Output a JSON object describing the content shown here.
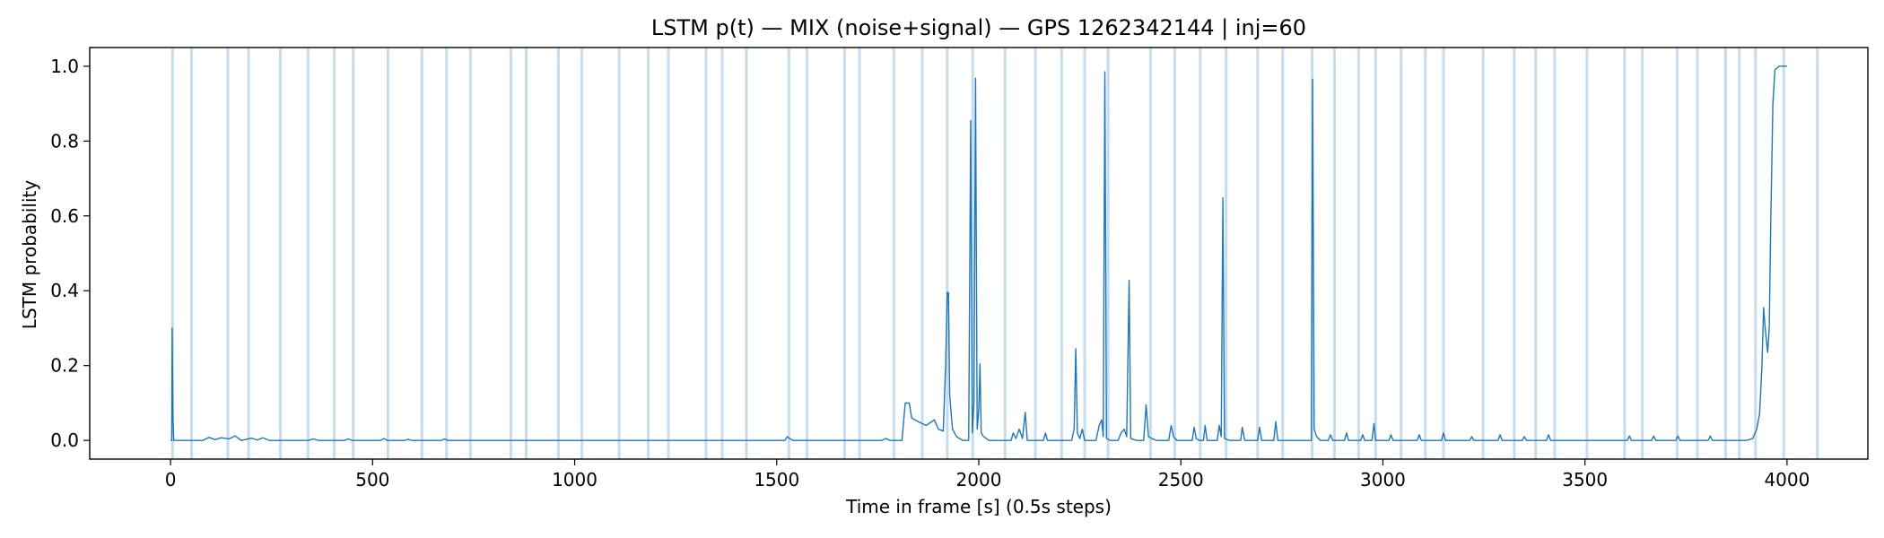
{
  "chart_data": {
    "type": "line",
    "title": "LSTM p(t) — MIX (noise+signal) — GPS 1262342144 | inj=60",
    "xlabel": "Time in frame [s] (0.5s steps)",
    "ylabel": "LSTM probability",
    "xlim": [
      -200,
      4200
    ],
    "ylim": [
      -0.05,
      1.05
    ],
    "xticks": [
      0,
      500,
      1000,
      1500,
      2000,
      2500,
      3000,
      3500,
      4000
    ],
    "xtick_labels": [
      "0",
      "500",
      "1000",
      "1500",
      "2000",
      "2500",
      "3000",
      "3500",
      "4000"
    ],
    "yticks": [
      0.0,
      0.2,
      0.4,
      0.6,
      0.8,
      1.0
    ],
    "ytick_labels": [
      "0.0",
      "0.2",
      "0.4",
      "0.6",
      "0.8",
      "1.0"
    ],
    "grid": false,
    "colors": {
      "line": "#1f77b4",
      "injection_band": "#bcd6ea"
    },
    "injection_markers_x": [
      5,
      52,
      142,
      193,
      272,
      340,
      405,
      452,
      538,
      622,
      683,
      742,
      842,
      880,
      960,
      1018,
      1110,
      1182,
      1232,
      1325,
      1365,
      1425,
      1530,
      1575,
      1668,
      1705,
      1790,
      1860,
      1922,
      1985,
      2065,
      2140,
      2205,
      2262,
      2320,
      2425,
      2485,
      2548,
      2612,
      2690,
      2752,
      2825,
      2880,
      2940,
      2982,
      3045,
      3105,
      3150,
      3248,
      3325,
      3378,
      3425,
      3505,
      3598,
      3642,
      3728,
      3778,
      3848,
      3882,
      3922,
      3992,
      4075
    ],
    "series": [
      {
        "points": [
          [
            0,
            0.0
          ],
          [
            3,
            0.0
          ],
          [
            4,
            0.3
          ],
          [
            6,
            0.06
          ],
          [
            8,
            0.0
          ],
          [
            80,
            0.0
          ],
          [
            95,
            0.008
          ],
          [
            110,
            0.002
          ],
          [
            125,
            0.007
          ],
          [
            145,
            0.004
          ],
          [
            160,
            0.012
          ],
          [
            175,
            0.0
          ],
          [
            200,
            0.006
          ],
          [
            215,
            0.001
          ],
          [
            228,
            0.007
          ],
          [
            245,
            0.0
          ],
          [
            340,
            0.0
          ],
          [
            355,
            0.004
          ],
          [
            365,
            0.0
          ],
          [
            430,
            0.0
          ],
          [
            440,
            0.004
          ],
          [
            450,
            0.0
          ],
          [
            520,
            0.0
          ],
          [
            528,
            0.005
          ],
          [
            536,
            0.0
          ],
          [
            580,
            0.0
          ],
          [
            588,
            0.003
          ],
          [
            596,
            0.0
          ],
          [
            670,
            0.0
          ],
          [
            678,
            0.004
          ],
          [
            686,
            0.0
          ],
          [
            1520,
            0.0
          ],
          [
            1526,
            0.01
          ],
          [
            1532,
            0.005
          ],
          [
            1540,
            0.0
          ],
          [
            1760,
            0.0
          ],
          [
            1770,
            0.005
          ],
          [
            1780,
            0.0
          ],
          [
            1810,
            0.0
          ],
          [
            1818,
            0.1
          ],
          [
            1828,
            0.1
          ],
          [
            1834,
            0.06
          ],
          [
            1850,
            0.05
          ],
          [
            1870,
            0.04
          ],
          [
            1890,
            0.055
          ],
          [
            1900,
            0.03
          ],
          [
            1912,
            0.025
          ],
          [
            1918,
            0.2
          ],
          [
            1922,
            0.395
          ],
          [
            1925,
            0.395
          ],
          [
            1928,
            0.12
          ],
          [
            1935,
            0.03
          ],
          [
            1945,
            0.01
          ],
          [
            1960,
            0.0
          ],
          [
            1975,
            0.0
          ],
          [
            1980,
            0.855
          ],
          [
            1984,
            0.02
          ],
          [
            1988,
            0.1
          ],
          [
            1992,
            0.968
          ],
          [
            1996,
            0.03
          ],
          [
            2000,
            0.08
          ],
          [
            2003,
            0.205
          ],
          [
            2006,
            0.02
          ],
          [
            2012,
            0.01
          ],
          [
            2025,
            0.0
          ],
          [
            2080,
            0.0
          ],
          [
            2085,
            0.02
          ],
          [
            2092,
            0.005
          ],
          [
            2100,
            0.03
          ],
          [
            2108,
            0.005
          ],
          [
            2115,
            0.075
          ],
          [
            2120,
            0.0
          ],
          [
            2160,
            0.0
          ],
          [
            2165,
            0.02
          ],
          [
            2170,
            0.0
          ],
          [
            2230,
            0.0
          ],
          [
            2236,
            0.03
          ],
          [
            2240,
            0.245
          ],
          [
            2244,
            0.02
          ],
          [
            2250,
            0.005
          ],
          [
            2256,
            0.03
          ],
          [
            2262,
            0.0
          ],
          [
            2290,
            0.0
          ],
          [
            2298,
            0.04
          ],
          [
            2304,
            0.055
          ],
          [
            2308,
            0.01
          ],
          [
            2312,
            0.985
          ],
          [
            2316,
            0.005
          ],
          [
            2325,
            0.0
          ],
          [
            2345,
            0.0
          ],
          [
            2352,
            0.02
          ],
          [
            2360,
            0.03
          ],
          [
            2366,
            0.01
          ],
          [
            2372,
            0.428
          ],
          [
            2376,
            0.005
          ],
          [
            2390,
            0.0
          ],
          [
            2408,
            0.0
          ],
          [
            2414,
            0.095
          ],
          [
            2420,
            0.01
          ],
          [
            2428,
            0.005
          ],
          [
            2440,
            0.0
          ],
          [
            2470,
            0.0
          ],
          [
            2476,
            0.04
          ],
          [
            2482,
            0.01
          ],
          [
            2490,
            0.0
          ],
          [
            2528,
            0.0
          ],
          [
            2533,
            0.035
          ],
          [
            2538,
            0.005
          ],
          [
            2545,
            0.0
          ],
          [
            2556,
            0.0
          ],
          [
            2560,
            0.04
          ],
          [
            2565,
            0.0
          ],
          [
            2590,
            0.0
          ],
          [
            2595,
            0.04
          ],
          [
            2600,
            0.01
          ],
          [
            2604,
            0.648
          ],
          [
            2608,
            0.005
          ],
          [
            2620,
            0.0
          ],
          [
            2648,
            0.0
          ],
          [
            2652,
            0.035
          ],
          [
            2658,
            0.0
          ],
          [
            2690,
            0.0
          ],
          [
            2695,
            0.035
          ],
          [
            2700,
            0.0
          ],
          [
            2730,
            0.0
          ],
          [
            2735,
            0.05
          ],
          [
            2740,
            0.0
          ],
          [
            2823,
            0.0
          ],
          [
            2826,
            0.965
          ],
          [
            2830,
            0.03
          ],
          [
            2836,
            0.01
          ],
          [
            2845,
            0.0
          ],
          [
            2865,
            0.0
          ],
          [
            2870,
            0.015
          ],
          [
            2876,
            0.0
          ],
          [
            2905,
            0.0
          ],
          [
            2910,
            0.02
          ],
          [
            2915,
            0.0
          ],
          [
            2945,
            0.0
          ],
          [
            2950,
            0.015
          ],
          [
            2955,
            0.0
          ],
          [
            2973,
            0.0
          ],
          [
            2978,
            0.045
          ],
          [
            2982,
            0.0
          ],
          [
            3015,
            0.0
          ],
          [
            3020,
            0.015
          ],
          [
            3025,
            0.0
          ],
          [
            3085,
            0.0
          ],
          [
            3090,
            0.015
          ],
          [
            3095,
            0.0
          ],
          [
            3145,
            0.0
          ],
          [
            3150,
            0.02
          ],
          [
            3155,
            0.0
          ],
          [
            3215,
            0.0
          ],
          [
            3220,
            0.01
          ],
          [
            3225,
            0.0
          ],
          [
            3285,
            0.0
          ],
          [
            3290,
            0.015
          ],
          [
            3295,
            0.0
          ],
          [
            3345,
            0.0
          ],
          [
            3350,
            0.01
          ],
          [
            3355,
            0.0
          ],
          [
            3405,
            0.0
          ],
          [
            3410,
            0.015
          ],
          [
            3415,
            0.0
          ],
          [
            3605,
            0.0
          ],
          [
            3610,
            0.012
          ],
          [
            3615,
            0.0
          ],
          [
            3665,
            0.0
          ],
          [
            3670,
            0.012
          ],
          [
            3675,
            0.0
          ],
          [
            3725,
            0.0
          ],
          [
            3730,
            0.012
          ],
          [
            3735,
            0.0
          ],
          [
            3805,
            0.0
          ],
          [
            3810,
            0.012
          ],
          [
            3815,
            0.0
          ],
          [
            3900,
            0.0
          ],
          [
            3915,
            0.005
          ],
          [
            3925,
            0.03
          ],
          [
            3932,
            0.07
          ],
          [
            3938,
            0.2
          ],
          [
            3942,
            0.355
          ],
          [
            3946,
            0.3
          ],
          [
            3952,
            0.235
          ],
          [
            3956,
            0.3
          ],
          [
            3960,
            0.6
          ],
          [
            3965,
            0.9
          ],
          [
            3970,
            0.99
          ],
          [
            3980,
            1.0
          ],
          [
            4000,
            1.0
          ]
        ]
      }
    ]
  }
}
